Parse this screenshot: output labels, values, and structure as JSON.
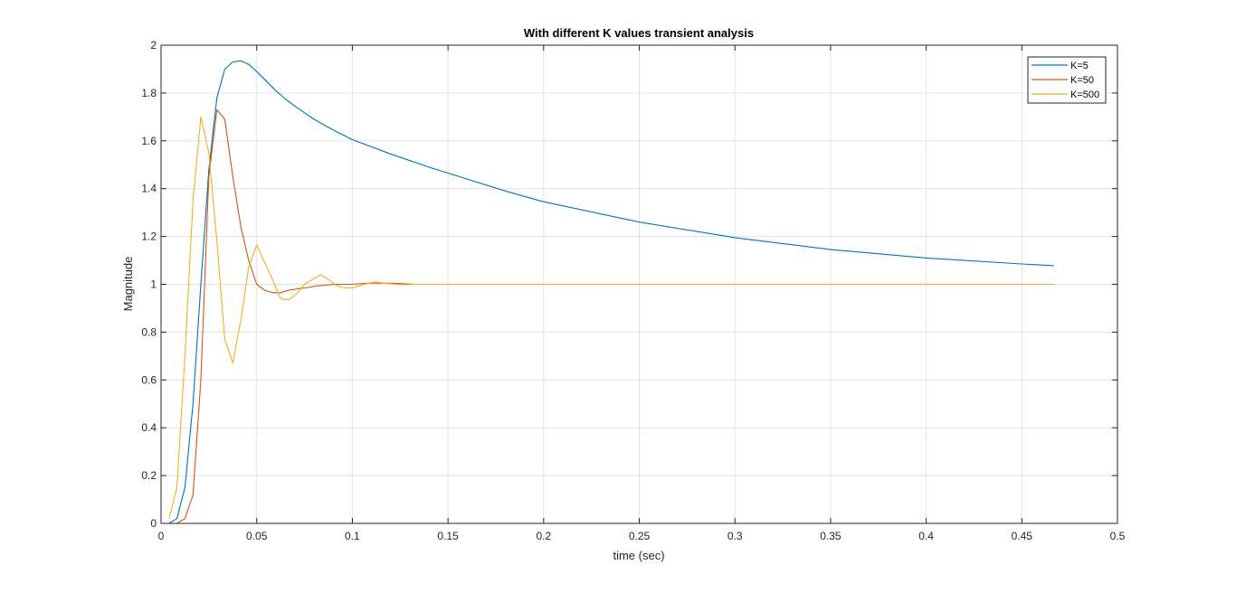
{
  "chart_data": {
    "type": "line",
    "title": "With different K values transient analysis",
    "xlabel": "time (sec)",
    "ylabel": "Magnitude",
    "xlim": [
      0,
      0.5
    ],
    "ylim": [
      0,
      2
    ],
    "x_ticks": [
      "0",
      "0.05",
      "0.1",
      "0.15",
      "0.2",
      "0.25",
      "0.3",
      "0.35",
      "0.4",
      "0.45",
      "0.5"
    ],
    "y_ticks": [
      "0",
      "0.2",
      "0.4",
      "0.6",
      "0.8",
      "1",
      "1.2",
      "1.4",
      "1.6",
      "1.8",
      "2"
    ],
    "grid": true,
    "legend_position": "top-right",
    "series": [
      {
        "name": "K=5",
        "color": "#0072BD",
        "x": [
          0.0042,
          0.0083,
          0.0125,
          0.0167,
          0.0208,
          0.025,
          0.0292,
          0.0333,
          0.0375,
          0.0417,
          0.0458,
          0.05,
          0.055,
          0.06,
          0.065,
          0.07,
          0.08,
          0.09,
          0.1,
          0.12,
          0.14,
          0.16,
          0.18,
          0.2,
          0.25,
          0.3,
          0.35,
          0.4,
          0.45,
          0.4667
        ],
        "y": [
          0.0,
          0.02,
          0.15,
          0.5,
          1.0,
          1.48,
          1.78,
          1.9,
          1.93,
          1.935,
          1.92,
          1.89,
          1.85,
          1.81,
          1.775,
          1.745,
          1.69,
          1.645,
          1.605,
          1.545,
          1.49,
          1.44,
          1.39,
          1.345,
          1.26,
          1.195,
          1.145,
          1.11,
          1.085,
          1.078
        ]
      },
      {
        "name": "K=50",
        "color": "#D95319",
        "x": [
          0.0042,
          0.0083,
          0.0125,
          0.0167,
          0.0208,
          0.025,
          0.0292,
          0.0333,
          0.0375,
          0.0417,
          0.0458,
          0.05,
          0.0542,
          0.0583,
          0.0625,
          0.0667,
          0.075,
          0.0833,
          0.0917,
          0.1,
          0.1083,
          0.1167,
          0.125,
          0.1333,
          0.15,
          0.2,
          0.3,
          0.4,
          0.4667
        ],
        "y": [
          0.0,
          0.0,
          0.02,
          0.12,
          0.6,
          1.45,
          1.73,
          1.69,
          1.45,
          1.24,
          1.1,
          1.0,
          0.975,
          0.965,
          0.965,
          0.975,
          0.985,
          0.995,
          1.0,
          1.0,
          1.005,
          1.005,
          1.003,
          1.0,
          1.0,
          1.0,
          1.0,
          1.0,
          1.0
        ]
      },
      {
        "name": "K=500",
        "color": "#EDB120",
        "x": [
          0.0042,
          0.0083,
          0.0125,
          0.0167,
          0.0208,
          0.025,
          0.0292,
          0.0333,
          0.0375,
          0.0417,
          0.0458,
          0.05,
          0.0542,
          0.0583,
          0.0625,
          0.0667,
          0.0708,
          0.075,
          0.0792,
          0.0833,
          0.0875,
          0.0917,
          0.0958,
          0.1,
          0.1042,
          0.1083,
          0.1125,
          0.1167,
          0.125,
          0.1333,
          0.15,
          0.2,
          0.3,
          0.4,
          0.4667
        ],
        "y": [
          0.02,
          0.15,
          0.7,
          1.35,
          1.7,
          1.55,
          1.18,
          0.77,
          0.67,
          0.85,
          1.07,
          1.165,
          1.09,
          1.02,
          0.94,
          0.935,
          0.96,
          1.0,
          1.02,
          1.04,
          1.02,
          0.995,
          0.985,
          0.985,
          0.995,
          1.005,
          1.01,
          1.005,
          0.998,
          1.0,
          1.0,
          1.0,
          1.0,
          1.0,
          1.0
        ]
      }
    ]
  }
}
